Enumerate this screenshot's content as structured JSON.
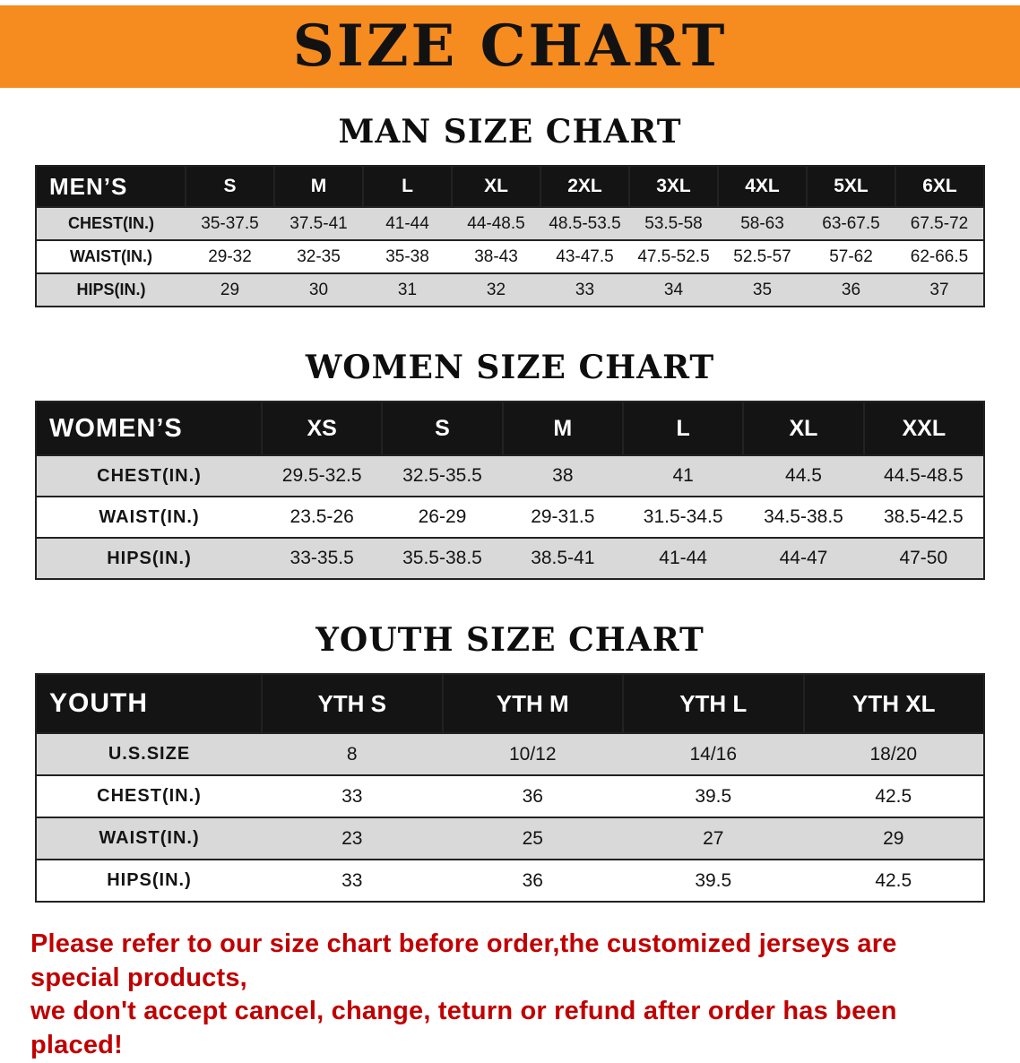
{
  "banner": {
    "title": "SIZE CHART"
  },
  "colors": {
    "banner_bg": "#F68B1F",
    "header_bg": "#141414",
    "stripe": "#D9D9D9",
    "notice": "#C00000",
    "line": "#222222"
  },
  "men": {
    "heading": "MAN SIZE CHART",
    "table": {
      "header": [
        "MEN’S",
        "S",
        "M",
        "L",
        "XL",
        "2XL",
        "3XL",
        "4XL",
        "5XL",
        "6XL"
      ],
      "rows": [
        [
          "CHEST(IN.)",
          "35-37.5",
          "37.5-41",
          "41-44",
          "44-48.5",
          "48.5-53.5",
          "53.5-58",
          "58-63",
          "63-67.5",
          "67.5-72"
        ],
        [
          "WAIST(IN.)",
          "29-32",
          "32-35",
          "35-38",
          "38-43",
          "43-47.5",
          "47.5-52.5",
          "52.5-57",
          "57-62",
          "62-66.5"
        ],
        [
          "HIPS(IN.)",
          "29",
          "30",
          "31",
          "32",
          "33",
          "34",
          "35",
          "36",
          "37"
        ]
      ]
    }
  },
  "women": {
    "heading": "WOMEN SIZE CHART",
    "table": {
      "header": [
        "WOMEN’S",
        "XS",
        "S",
        "M",
        "L",
        "XL",
        "XXL"
      ],
      "rows": [
        [
          "CHEST(IN.)",
          "29.5-32.5",
          "32.5-35.5",
          "38",
          "41",
          "44.5",
          "44.5-48.5"
        ],
        [
          "WAIST(IN.)",
          "23.5-26",
          "26-29",
          "29-31.5",
          "31.5-34.5",
          "34.5-38.5",
          "38.5-42.5"
        ],
        [
          "HIPS(IN.)",
          "33-35.5",
          "35.5-38.5",
          "38.5-41",
          "41-44",
          "44-47",
          "47-50"
        ]
      ]
    }
  },
  "youth": {
    "heading": "YOUTH SIZE CHART",
    "table": {
      "header": [
        "YOUTH",
        "YTH S",
        "YTH M",
        "YTH L",
        "YTH XL"
      ],
      "rows": [
        [
          "U.S.SIZE",
          "8",
          "10/12",
          "14/16",
          "18/20"
        ],
        [
          "CHEST(IN.)",
          "33",
          "36",
          "39.5",
          "42.5"
        ],
        [
          "WAIST(IN.)",
          "23",
          "25",
          "27",
          "29"
        ],
        [
          "HIPS(IN.)",
          "33",
          "36",
          "39.5",
          "42.5"
        ]
      ]
    }
  },
  "notice": {
    "line1": "Please refer to our size chart before order,the customized jerseys are special products,",
    "line2": "we don't accept cancel, change, teturn or refund after order has been placed!"
  }
}
